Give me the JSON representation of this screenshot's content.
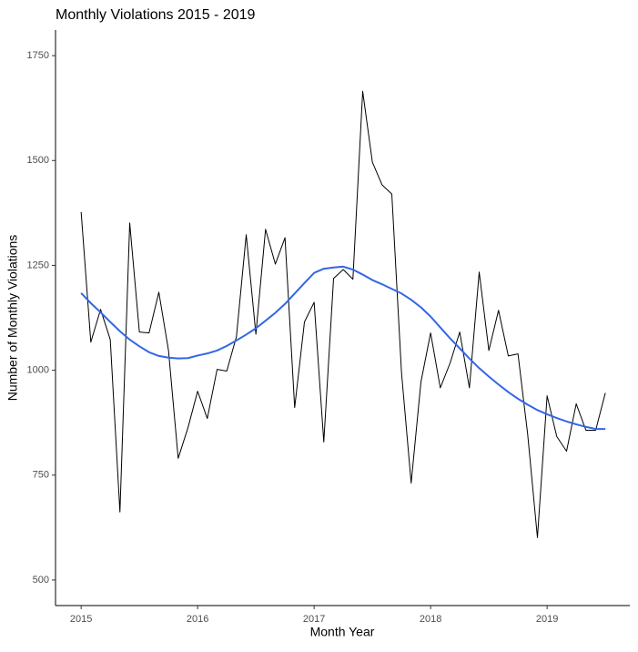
{
  "chart_data": {
    "type": "line",
    "title": "Monthly Violations 2015 - 2019",
    "x_label": "Month Year",
    "y_label": "Number of Monthly Violations",
    "x": [
      2015,
      2015.083,
      2015.167,
      2015.25,
      2015.333,
      2015.417,
      2015.5,
      2015.583,
      2015.667,
      2015.75,
      2015.833,
      2015.917,
      2016,
      2016.083,
      2016.167,
      2016.25,
      2016.333,
      2016.417,
      2016.5,
      2016.583,
      2016.667,
      2016.75,
      2016.833,
      2016.917,
      2017,
      2017.083,
      2017.167,
      2017.25,
      2017.333,
      2017.417,
      2017.5,
      2017.583,
      2017.667,
      2017.75,
      2017.833,
      2017.917,
      2018,
      2018.083,
      2018.167,
      2018.25,
      2018.333,
      2018.417,
      2018.5,
      2018.583,
      2018.667,
      2018.75,
      2018.833,
      2018.917,
      2019,
      2019.083,
      2019.167,
      2019.25,
      2019.333,
      2019.417,
      2019.5
    ],
    "series": [
      {
        "color": "#000000",
        "width": 1,
        "values": [
          1377,
          1067,
          1145,
          1073,
          662,
          1351,
          1091,
          1089,
          1186,
          1047,
          790,
          863,
          950,
          885,
          1002,
          998,
          1080,
          1323,
          1086,
          1336,
          1253,
          1316,
          911,
          1115,
          1162,
          829,
          1219,
          1240,
          1217,
          1665,
          1496,
          1442,
          1420,
          995,
          731,
          972,
          1089,
          958,
          1017,
          1091,
          958,
          1234,
          1047,
          1143,
          1034,
          1039,
          848,
          601,
          939,
          842,
          807,
          920,
          857,
          857,
          946
        ]
      },
      {
        "color": "#3366e6",
        "width": 2,
        "values": [
          1184,
          1160,
          1138,
          1115,
          1093,
          1073,
          1057,
          1043,
          1034,
          1030,
          1028,
          1029,
          1035,
          1040,
          1047,
          1058,
          1071,
          1085,
          1100,
          1118,
          1137,
          1158,
          1183,
          1208,
          1232,
          1242,
          1245,
          1247,
          1240,
          1228,
          1215,
          1205,
          1194,
          1183,
          1168,
          1150,
          1128,
          1102,
          1076,
          1052,
          1028,
          1005,
          985,
          966,
          948,
          932,
          918,
          905,
          895,
          886,
          878,
          871,
          865,
          860,
          860
        ]
      }
    ],
    "xlim": [
      2014.78,
      2019.71
    ],
    "xticks": [
      2015,
      2016,
      2017,
      2018,
      2019
    ],
    "ylim": [
      439,
      1811
    ],
    "yticks": [
      500,
      750,
      1000,
      1250,
      1500,
      1750
    ],
    "grid": false
  }
}
